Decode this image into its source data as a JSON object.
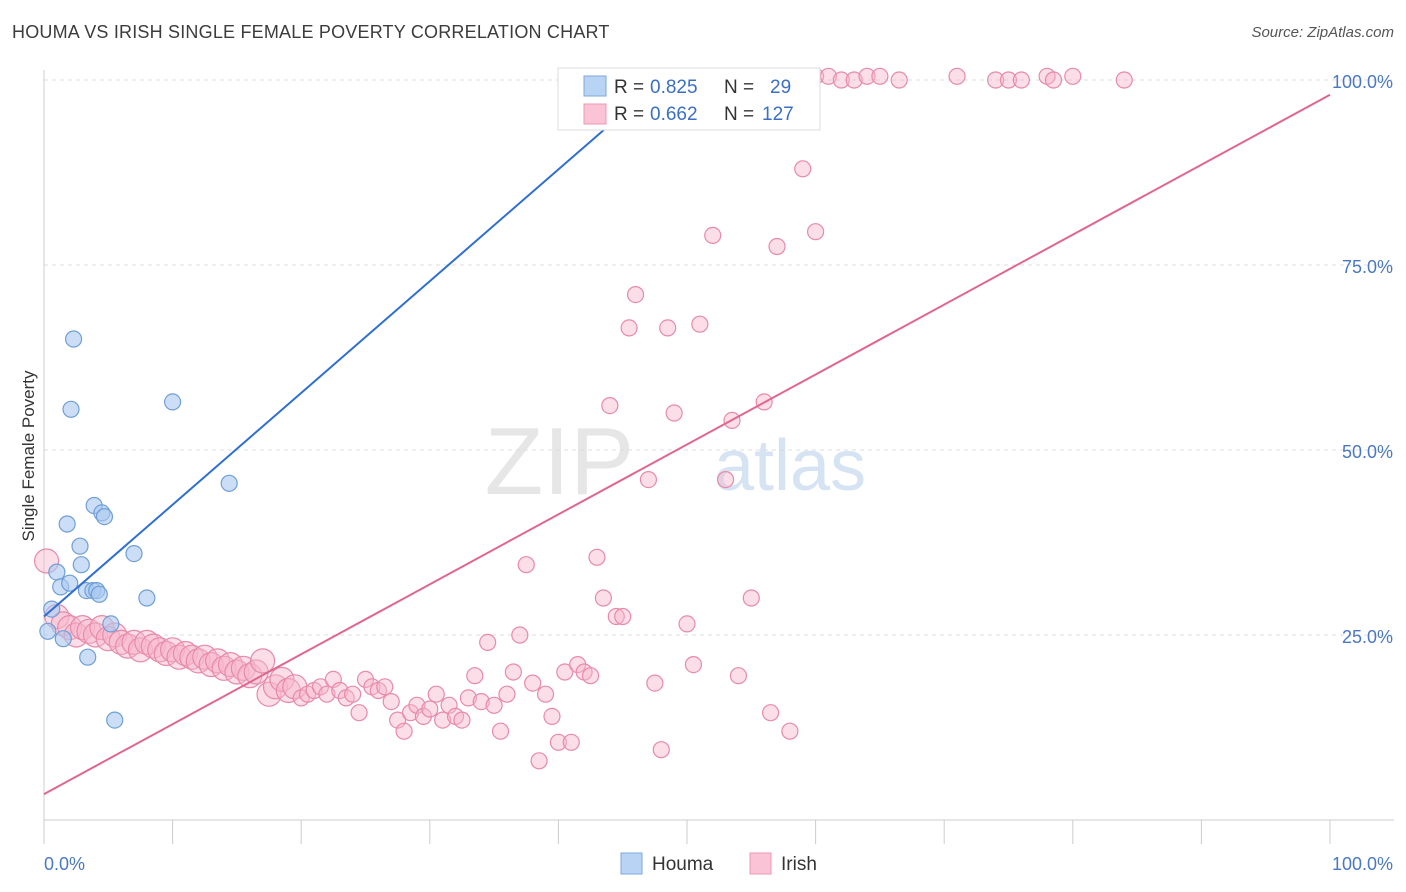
{
  "title": "HOUMA VS IRISH SINGLE FEMALE POVERTY CORRELATION CHART",
  "source": "Source: ZipAtlas.com",
  "watermark": {
    "part1": "ZIP",
    "part2": "atlas"
  },
  "colors": {
    "houma_fill": "#a9c8f0",
    "houma_stroke": "#6f9fd8",
    "houma_line": "#2f6fcf",
    "irish_fill": "#f7b6cb",
    "irish_stroke": "#e88aa8",
    "irish_line": "#e06690",
    "tick_label": "#4a78c2",
    "grid": "#dddddd"
  },
  "legend": {
    "rows": [
      {
        "r_label": "R = ",
        "r_value": "0.825",
        "n_label": "N = ",
        "n_value": "29"
      },
      {
        "r_label": "R = ",
        "r_value": "0.662",
        "n_label": "N = ",
        "n_value": "127"
      }
    ]
  },
  "chart_data": {
    "type": "scatter",
    "ylabel": "Single Female Poverty",
    "xlabel": "",
    "xlim": [
      0,
      100
    ],
    "ylim": [
      0,
      104
    ],
    "x_tick_labels": [
      "0.0%",
      "100.0%"
    ],
    "y_ticks": [
      25,
      50,
      75,
      100
    ],
    "y_tick_labels": [
      "25.0%",
      "50.0%",
      "75.0%",
      "100.0%"
    ],
    "grid": true,
    "legend_position": "top-center",
    "series": [
      {
        "name": "Houma",
        "r": 0.825,
        "n": 29,
        "trend": {
          "x": [
            0,
            48
          ],
          "y": [
            27.5,
            100
          ]
        },
        "points": [
          [
            0.3,
            25.5
          ],
          [
            0.6,
            28.5
          ],
          [
            1.0,
            33.5
          ],
          [
            1.3,
            31.5
          ],
          [
            1.5,
            24.5
          ],
          [
            1.8,
            40
          ],
          [
            2.0,
            32
          ],
          [
            2.1,
            55.5
          ],
          [
            2.3,
            65
          ],
          [
            2.8,
            37
          ],
          [
            2.9,
            34.5
          ],
          [
            3.3,
            31
          ],
          [
            3.4,
            22
          ],
          [
            3.8,
            31
          ],
          [
            3.9,
            42.5
          ],
          [
            4.1,
            31
          ],
          [
            4.3,
            30.5
          ],
          [
            4.5,
            41.5
          ],
          [
            4.7,
            41
          ],
          [
            5.2,
            26.5
          ],
          [
            5.5,
            13.5
          ],
          [
            7.0,
            36
          ],
          [
            8.0,
            30
          ],
          [
            10.0,
            56.5
          ],
          [
            14.4,
            45.5
          ],
          [
            41.0,
            95
          ],
          [
            45.0,
            97
          ],
          [
            50.0,
            100.5
          ],
          [
            51.0,
            100.5
          ]
        ]
      },
      {
        "name": "Irish",
        "r": 0.662,
        "n": 127,
        "trend": {
          "x": [
            0,
            100
          ],
          "y": [
            3.5,
            98
          ]
        },
        "points": [
          [
            0.2,
            35
          ],
          [
            1.0,
            27.5
          ],
          [
            1.5,
            26.5
          ],
          [
            2.0,
            26
          ],
          [
            2.5,
            25
          ],
          [
            3.0,
            26
          ],
          [
            3.5,
            25.5
          ],
          [
            4.0,
            25
          ],
          [
            4.5,
            26
          ],
          [
            5.0,
            24.5
          ],
          [
            5.5,
            25
          ],
          [
            6.0,
            24
          ],
          [
            6.5,
            23.5
          ],
          [
            7.0,
            24
          ],
          [
            7.5,
            23
          ],
          [
            8.0,
            24
          ],
          [
            8.5,
            23.5
          ],
          [
            9.0,
            23
          ],
          [
            9.5,
            22.5
          ],
          [
            10.0,
            23
          ],
          [
            10.5,
            22
          ],
          [
            11.0,
            22.5
          ],
          [
            11.5,
            22
          ],
          [
            12.0,
            21.5
          ],
          [
            12.5,
            22
          ],
          [
            13.0,
            21
          ],
          [
            13.5,
            21.5
          ],
          [
            14.0,
            20.5
          ],
          [
            14.5,
            21
          ],
          [
            15.0,
            20
          ],
          [
            15.5,
            20.5
          ],
          [
            16.0,
            19.5
          ],
          [
            16.5,
            20
          ],
          [
            17.0,
            21.5
          ],
          [
            17.5,
            17
          ],
          [
            18.0,
            18
          ],
          [
            18.5,
            19
          ],
          [
            19.0,
            17.5
          ],
          [
            19.5,
            18
          ],
          [
            20.0,
            16.5
          ],
          [
            20.5,
            17
          ],
          [
            21.0,
            17.5
          ],
          [
            21.5,
            18
          ],
          [
            22.0,
            17
          ],
          [
            22.5,
            19
          ],
          [
            23.0,
            17.5
          ],
          [
            23.5,
            16.5
          ],
          [
            24.0,
            17
          ],
          [
            24.5,
            14.5
          ],
          [
            25.0,
            19
          ],
          [
            25.5,
            18
          ],
          [
            26.0,
            17.5
          ],
          [
            26.5,
            18
          ],
          [
            27.0,
            16
          ],
          [
            27.5,
            13.5
          ],
          [
            28.0,
            12
          ],
          [
            28.5,
            14.5
          ],
          [
            29.0,
            15.5
          ],
          [
            29.5,
            14
          ],
          [
            30.0,
            15
          ],
          [
            30.5,
            17
          ],
          [
            31.0,
            13.5
          ],
          [
            31.5,
            15.5
          ],
          [
            32.0,
            14
          ],
          [
            32.5,
            13.5
          ],
          [
            33.0,
            16.5
          ],
          [
            33.5,
            19.5
          ],
          [
            34.0,
            16
          ],
          [
            34.5,
            24
          ],
          [
            35.0,
            15.5
          ],
          [
            35.5,
            12
          ],
          [
            36.0,
            17
          ],
          [
            36.5,
            20
          ],
          [
            37.0,
            25
          ],
          [
            37.5,
            34.5
          ],
          [
            38.0,
            18.5
          ],
          [
            38.5,
            8
          ],
          [
            39.0,
            17
          ],
          [
            39.5,
            14
          ],
          [
            40.0,
            10.5
          ],
          [
            40.5,
            20
          ],
          [
            41.0,
            10.5
          ],
          [
            41.5,
            21
          ],
          [
            42.0,
            20
          ],
          [
            42.5,
            19.5
          ],
          [
            43.0,
            35.5
          ],
          [
            43.5,
            30
          ],
          [
            44.0,
            56
          ],
          [
            44.5,
            27.5
          ],
          [
            45.0,
            27.5
          ],
          [
            45.5,
            66.5
          ],
          [
            46.0,
            71
          ],
          [
            47.0,
            46
          ],
          [
            47.5,
            18.5
          ],
          [
            48.0,
            9.5
          ],
          [
            48.5,
            66.5
          ],
          [
            49.0,
            55
          ],
          [
            50.0,
            26.5
          ],
          [
            50.5,
            21
          ],
          [
            51.0,
            67
          ],
          [
            52.0,
            79
          ],
          [
            53.0,
            46
          ],
          [
            53.5,
            54
          ],
          [
            54.0,
            19.5
          ],
          [
            55.0,
            30
          ],
          [
            56.0,
            56.5
          ],
          [
            56.5,
            14.5
          ],
          [
            57.0,
            77.5
          ],
          [
            58.0,
            12
          ],
          [
            59.0,
            88
          ],
          [
            60.0,
            79.5
          ],
          [
            57.5,
            100
          ],
          [
            60.0,
            100.5
          ],
          [
            61.0,
            100.5
          ],
          [
            62.0,
            100
          ],
          [
            63.0,
            100
          ],
          [
            64.0,
            100.5
          ],
          [
            65.0,
            100.5
          ],
          [
            66.5,
            100
          ],
          [
            71.0,
            100.5
          ],
          [
            74.0,
            100
          ],
          [
            75.0,
            100
          ],
          [
            76.0,
            100
          ],
          [
            78.0,
            100.5
          ],
          [
            78.5,
            100
          ],
          [
            80.0,
            100.5
          ],
          [
            84.0,
            100
          ]
        ]
      }
    ]
  }
}
